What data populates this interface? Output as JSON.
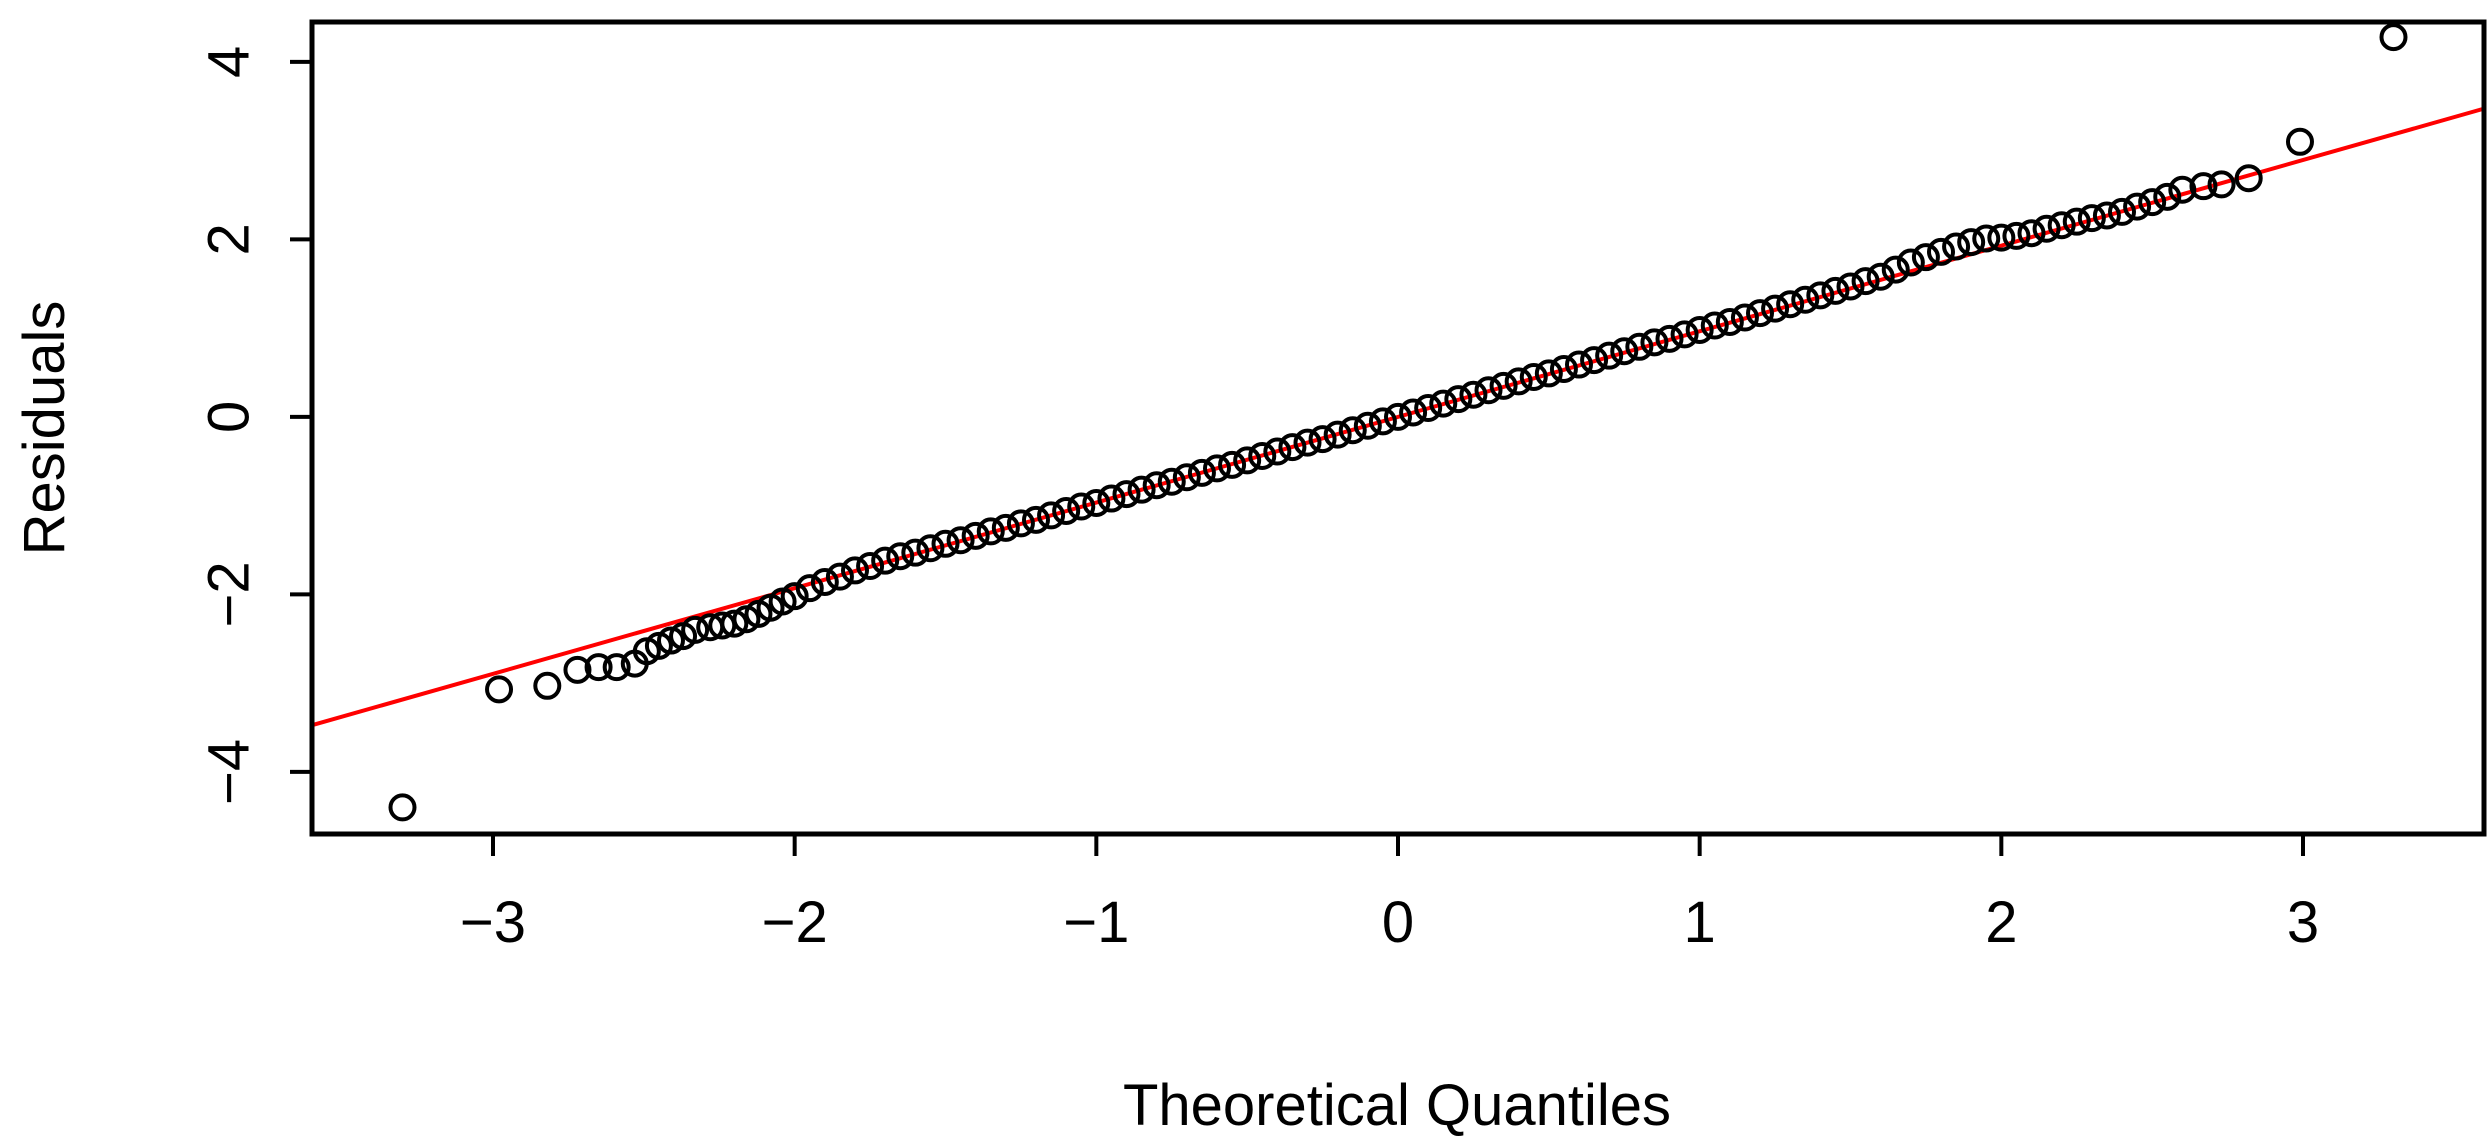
{
  "chart_data": {
    "type": "scatter",
    "title": "",
    "xlabel": "Theoretical Quantiles",
    "ylabel": "Residuals",
    "xlim": [
      -3.6,
      3.6
    ],
    "ylim": [
      -4.7,
      4.45
    ],
    "xticks": [
      -3,
      -2,
      -1,
      0,
      1,
      2,
      3
    ],
    "xtick_labels": [
      "−3",
      "−2",
      "−1",
      "0",
      "1",
      "2",
      "3"
    ],
    "yticks": [
      -4,
      -2,
      0,
      2,
      4
    ],
    "ytick_labels": [
      "−4",
      "−2",
      "0",
      "2",
      "4"
    ],
    "grid": false,
    "marker": "open-circle",
    "point_color": "#000000",
    "reference_line": {
      "slope": 0.965,
      "intercept": 0.0,
      "color": "#ff0000"
    },
    "points": {
      "x": [
        -3.3,
        -2.98,
        -2.82,
        -2.72,
        -2.65,
        -2.59,
        -2.53,
        -2.49,
        -2.45,
        -2.41,
        -2.37,
        -2.33,
        -2.28,
        -2.24,
        -2.2,
        -2.16,
        -2.12,
        -2.08,
        -2.04,
        -2.0,
        -1.95,
        -1.9,
        -1.85,
        -1.8,
        -1.75,
        -1.7,
        -1.65,
        -1.6,
        -1.55,
        -1.5,
        -1.45,
        -1.4,
        -1.35,
        -1.3,
        -1.25,
        -1.2,
        -1.15,
        -1.1,
        -1.05,
        -1.0,
        -0.95,
        -0.9,
        -0.85,
        -0.8,
        -0.75,
        -0.7,
        -0.65,
        -0.6,
        -0.55,
        -0.5,
        -0.45,
        -0.4,
        -0.35,
        -0.3,
        -0.25,
        -0.2,
        -0.15,
        -0.1,
        -0.05,
        0.0,
        0.05,
        0.1,
        0.15,
        0.2,
        0.25,
        0.3,
        0.35,
        0.4,
        0.45,
        0.5,
        0.55,
        0.6,
        0.65,
        0.7,
        0.75,
        0.8,
        0.85,
        0.9,
        0.95,
        1.0,
        1.05,
        1.1,
        1.15,
        1.2,
        1.25,
        1.3,
        1.35,
        1.4,
        1.45,
        1.5,
        1.55,
        1.6,
        1.65,
        1.7,
        1.75,
        1.8,
        1.85,
        1.9,
        1.95,
        2.0,
        2.05,
        2.1,
        2.15,
        2.2,
        2.25,
        2.3,
        2.35,
        2.4,
        2.45,
        2.5,
        2.55,
        2.6,
        2.67,
        2.73,
        2.82,
        2.99,
        3.3
      ],
      "y": [
        -4.4,
        -3.07,
        -3.03,
        -2.85,
        -2.82,
        -2.82,
        -2.78,
        -2.64,
        -2.58,
        -2.52,
        -2.47,
        -2.4,
        -2.37,
        -2.35,
        -2.33,
        -2.28,
        -2.22,
        -2.15,
        -2.08,
        -2.02,
        -1.93,
        -1.86,
        -1.8,
        -1.73,
        -1.68,
        -1.62,
        -1.57,
        -1.53,
        -1.48,
        -1.43,
        -1.39,
        -1.34,
        -1.29,
        -1.25,
        -1.2,
        -1.16,
        -1.11,
        -1.06,
        -1.01,
        -0.97,
        -0.92,
        -0.87,
        -0.82,
        -0.77,
        -0.73,
        -0.68,
        -0.63,
        -0.58,
        -0.54,
        -0.49,
        -0.44,
        -0.39,
        -0.34,
        -0.29,
        -0.25,
        -0.2,
        -0.15,
        -0.1,
        -0.05,
        0.0,
        0.05,
        0.1,
        0.15,
        0.2,
        0.25,
        0.3,
        0.35,
        0.4,
        0.45,
        0.49,
        0.54,
        0.59,
        0.64,
        0.69,
        0.74,
        0.79,
        0.84,
        0.88,
        0.93,
        0.98,
        1.03,
        1.07,
        1.12,
        1.17,
        1.22,
        1.27,
        1.32,
        1.37,
        1.42,
        1.47,
        1.53,
        1.58,
        1.66,
        1.74,
        1.8,
        1.86,
        1.92,
        1.97,
        2.01,
        2.02,
        2.04,
        2.07,
        2.12,
        2.16,
        2.2,
        2.24,
        2.27,
        2.31,
        2.37,
        2.42,
        2.48,
        2.56,
        2.6,
        2.62,
        2.69,
        3.1,
        4.28
      ]
    }
  }
}
